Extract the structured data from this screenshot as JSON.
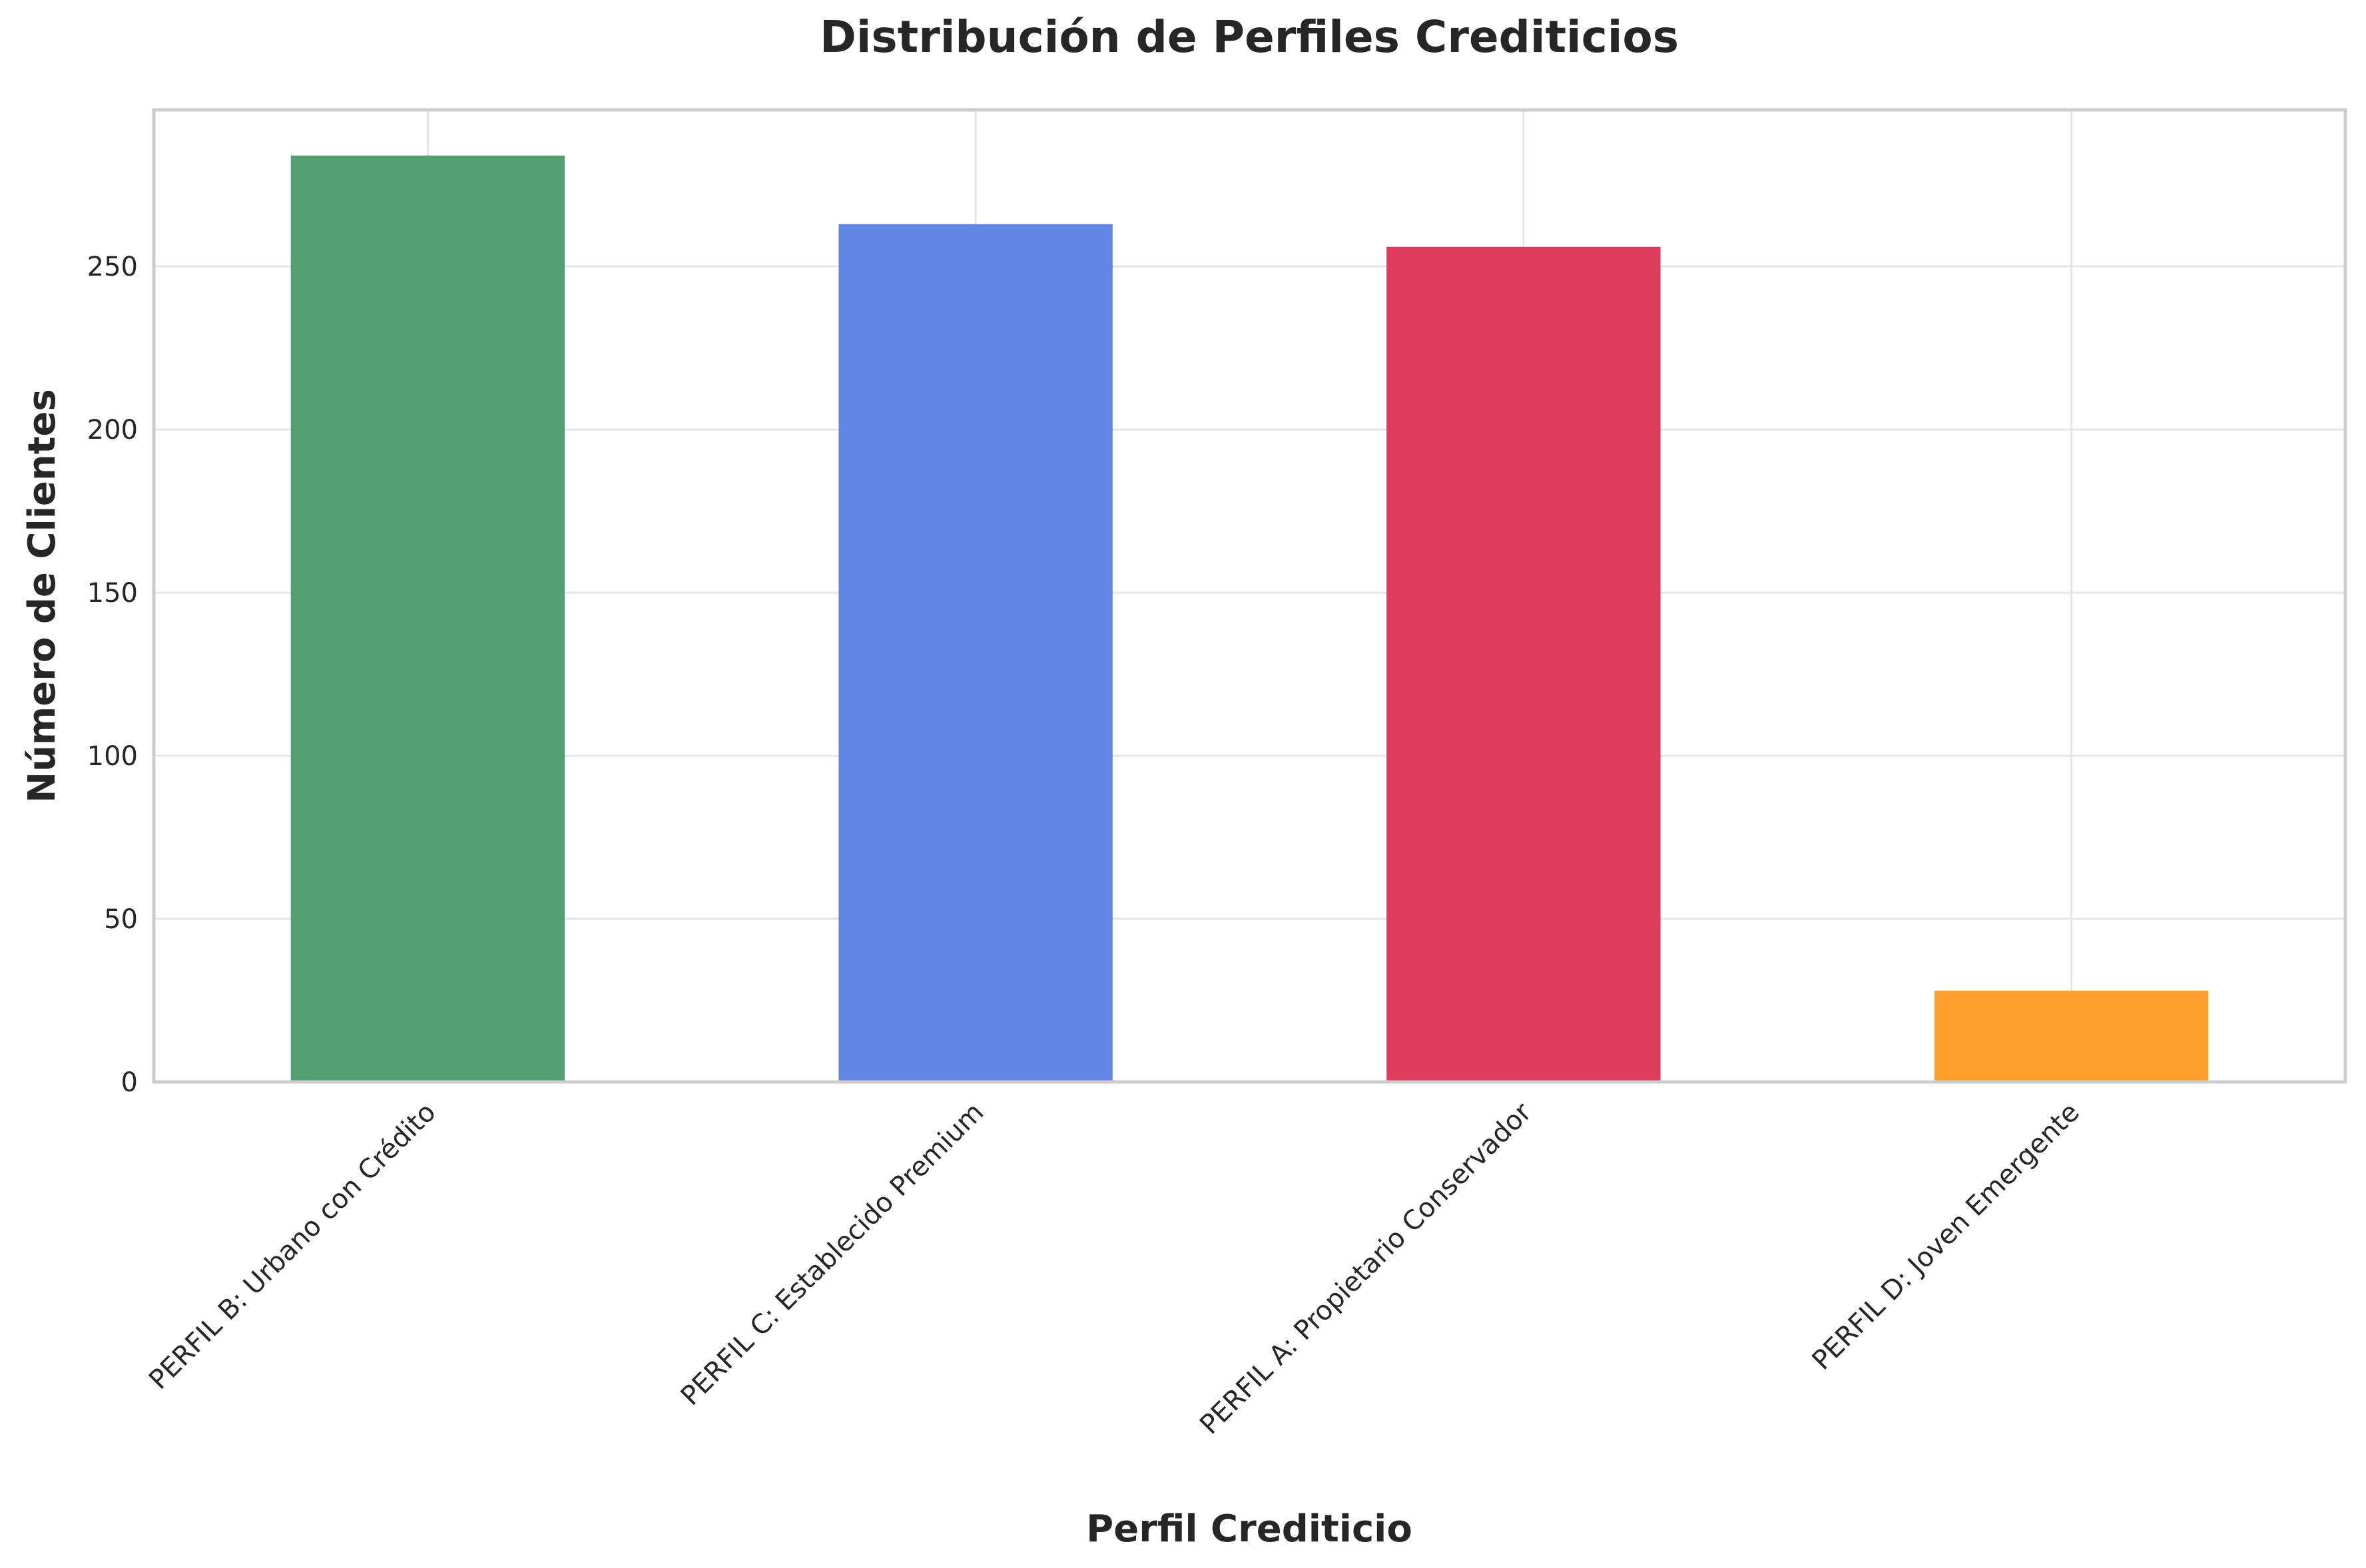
{
  "chart_data": {
    "type": "bar",
    "title": "Distribución de Perfiles Crediticios",
    "xlabel": "Perfil Crediticio",
    "ylabel": "Número de Clientes",
    "categories": [
      "PERFIL B: Urbano con Crédito",
      "PERFIL C: Establecido Premium",
      "PERFIL A: Propietario Conservador",
      "PERFIL D: Joven Emergente"
    ],
    "values": [
      284,
      263,
      256,
      28
    ],
    "colors": [
      "#4c9a6e",
      "#5b7fe3",
      "#de3355",
      "#ff9922"
    ],
    "ylim": [
      0,
      298
    ],
    "yticks": [
      0,
      50,
      100,
      150,
      200,
      250
    ],
    "grid": true,
    "legend": "none"
  }
}
